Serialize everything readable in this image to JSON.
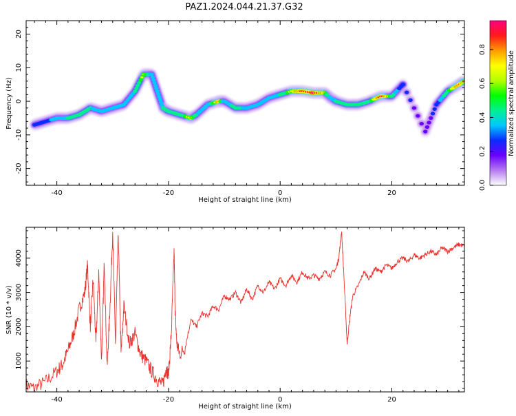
{
  "title": "PAZ1.2024.044.21.37.G32",
  "colorbar": {
    "label": "Normalized spectral amplitude",
    "ticks": [
      "0.0",
      "0.2",
      "0.4",
      "0.6",
      "0.8"
    ],
    "tick_values": [
      0.0,
      0.2,
      0.4,
      0.6,
      0.8
    ],
    "range": [
      0,
      0.97
    ],
    "colors": [
      "#ffffff",
      "#b57af0",
      "#6a00ff",
      "#0b2cff",
      "#00c8ff",
      "#00f090",
      "#00ff00",
      "#b4ff00",
      "#ffff00",
      "#ff9a00",
      "#ff1a1a",
      "#ff0080"
    ]
  },
  "chart_data": [
    {
      "type": "heatmap",
      "xlabel": "Height of straight line (km)",
      "ylabel": "Frequency (Hz)",
      "xlim": [
        -45.5,
        33
      ],
      "ylim": [
        -25,
        24
      ],
      "xticks": [
        -40,
        -20,
        0,
        20
      ],
      "yticks": [
        -20,
        -10,
        0,
        10,
        20
      ],
      "ridge": {
        "x": [
          -44,
          -42,
          -40,
          -38,
          -36,
          -34,
          -32,
          -30,
          -28,
          -26,
          -24.5,
          -23,
          -22,
          -21,
          -20,
          -18,
          -16,
          -15,
          -13,
          -11,
          -10,
          -8,
          -6,
          -4,
          -2,
          0,
          2,
          4,
          6,
          8,
          9,
          10,
          12,
          14,
          16,
          18,
          20,
          22,
          26,
          28,
          30,
          32,
          33
        ],
        "y": [
          -7,
          -6,
          -5,
          -5,
          -4,
          -2,
          -3,
          -2,
          -1,
          3,
          8,
          8,
          3,
          -2,
          -3,
          -4,
          -5,
          -4,
          -1,
          0,
          0,
          -2,
          -2,
          -1,
          1,
          2,
          3,
          3,
          2.5,
          2.5,
          1,
          0,
          -1,
          -1,
          0,
          1.5,
          1.5,
          5,
          -9,
          -1,
          3,
          5,
          6
        ],
        "peak": [
          0.3,
          0.35,
          0.45,
          0.5,
          0.5,
          0.5,
          0.45,
          0.45,
          0.4,
          0.5,
          0.7,
          0.45,
          0.4,
          0.5,
          0.55,
          0.5,
          0.75,
          0.5,
          0.4,
          0.85,
          0.4,
          0.55,
          0.45,
          0.4,
          0.45,
          0.5,
          0.7,
          0.9,
          0.95,
          0.7,
          0.4,
          0.5,
          0.5,
          0.5,
          0.55,
          0.9,
          0.55,
          0.3,
          0.25,
          0.3,
          0.6,
          0.85,
          0.8
        ]
      }
    },
    {
      "type": "line",
      "xlabel": "Height of straight line (km)",
      "ylabel": "SNR (10 * v/v)",
      "xlim": [
        -45.5,
        33
      ],
      "ylim": [
        100,
        4900
      ],
      "xticks": [
        -40,
        -20,
        0,
        20
      ],
      "yticks": [
        1000,
        2000,
        3000,
        4000
      ],
      "color": "#e8302c",
      "series": [
        {
          "x": [
            -45.5,
            -44,
            -42,
            -40,
            -39,
            -38,
            -37,
            -36,
            -35,
            -34.5,
            -34,
            -33.5,
            -33,
            -32.5,
            -32,
            -31.5,
            -31,
            -30.5,
            -30,
            -29.5,
            -29,
            -28.5,
            -28,
            -27,
            -26,
            -25,
            -24,
            -23,
            -22,
            -21,
            -20.5,
            -20,
            -19.5,
            -19,
            -18.8,
            -18.5,
            -18,
            -17,
            -16,
            -15,
            -14,
            -13,
            -12,
            -11,
            -10,
            -9,
            -8,
            -7,
            -6,
            -5,
            -4,
            -3,
            -2,
            -1,
            0,
            1,
            2,
            3,
            4,
            5,
            6,
            7,
            8,
            9,
            10,
            10.5,
            11,
            11.5,
            12,
            12.5,
            13,
            14,
            15,
            16,
            17,
            18,
            19,
            20,
            21,
            22,
            23,
            24,
            25,
            26,
            27,
            28,
            29,
            30,
            31,
            32,
            33
          ],
          "y": [
            300,
            200,
            400,
            700,
            900,
            1300,
            1800,
            2500,
            3000,
            3800,
            2000,
            3400,
            1500,
            3600,
            1000,
            3900,
            800,
            2500,
            4800,
            1500,
            4700,
            1200,
            2600,
            1500,
            1800,
            1200,
            1000,
            700,
            450,
            300,
            800,
            600,
            1800,
            4200,
            2400,
            1500,
            1200,
            1400,
            2200,
            2000,
            2400,
            2300,
            2600,
            2500,
            2900,
            2800,
            3000,
            2700,
            3100,
            2800,
            3200,
            3000,
            3300,
            3100,
            3400,
            3200,
            3500,
            3300,
            3600,
            3400,
            3500,
            3400,
            3600,
            3500,
            3700,
            4000,
            4800,
            3200,
            1500,
            2300,
            2900,
            3200,
            3600,
            3400,
            3700,
            3600,
            3800,
            3700,
            3900,
            4000,
            3900,
            4100,
            4000,
            4100,
            4200,
            4100,
            4300,
            4200,
            4300,
            4400,
            4350
          ]
        }
      ]
    }
  ]
}
